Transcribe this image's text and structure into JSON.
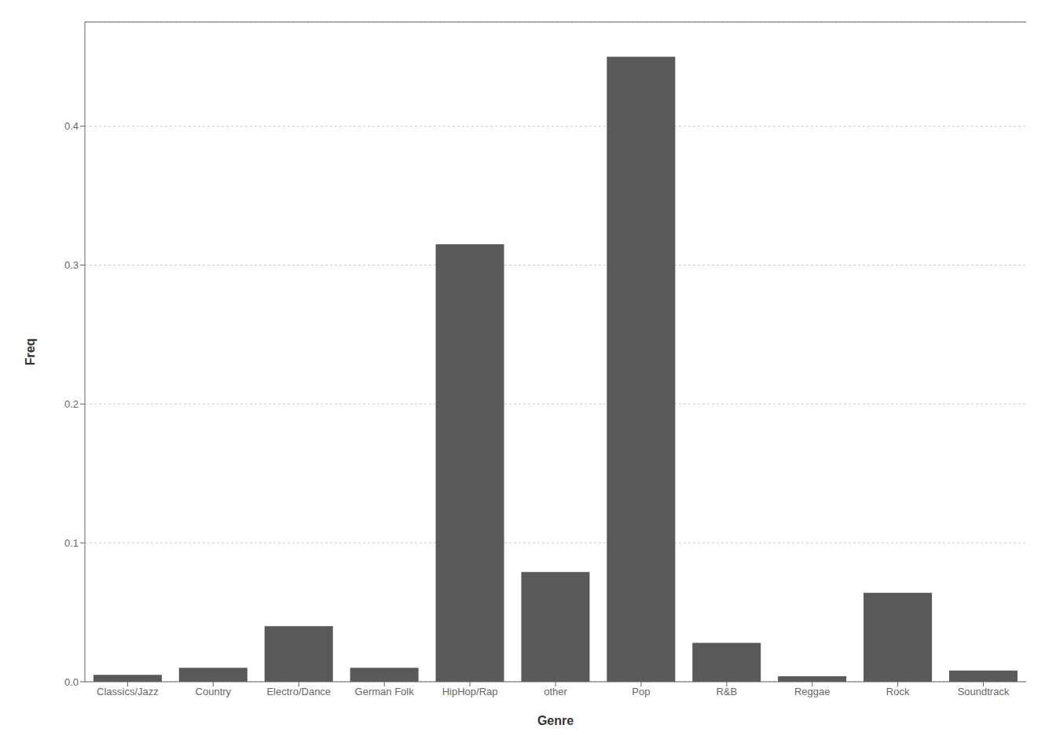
{
  "chart_data": {
    "type": "bar",
    "categories": [
      "Classics/Jazz",
      "Country",
      "Electro/Dance",
      "German Folk",
      "HipHop/Rap",
      "other",
      "Pop",
      "R&B",
      "Reggae",
      "Rock",
      "Soundtrack"
    ],
    "values": [
      0.005,
      0.01,
      0.04,
      0.01,
      0.315,
      0.079,
      0.45,
      0.028,
      0.004,
      0.064,
      0.008
    ],
    "color": "#595959",
    "xlabel": "Genre",
    "ylabel": "Freq",
    "ylim": [
      0,
      0.475
    ],
    "yticks": [
      {
        "value": 0,
        "label": "0.0"
      },
      0.1,
      0.2,
      0.3,
      0.4
    ],
    "grid": true
  }
}
